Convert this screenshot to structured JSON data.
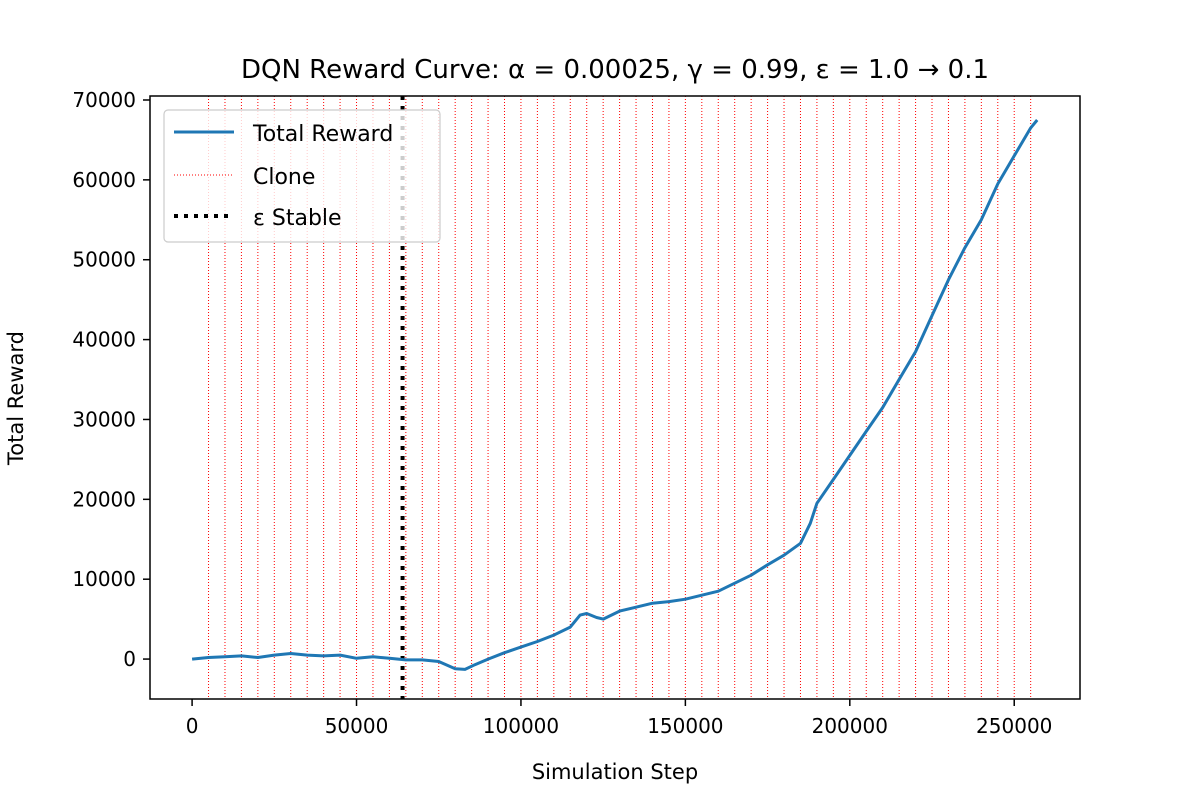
{
  "chart_data": {
    "type": "line",
    "title": "DQN Reward Curve: α = 0.00025, γ = 0.99, ε = 1.0 → 0.1",
    "xlabel": "Simulation Step",
    "ylabel": "Total Reward",
    "xlim": [
      -12800,
      270000
    ],
    "ylim": [
      -5000,
      70500
    ],
    "xticks": [
      0,
      50000,
      100000,
      150000,
      200000,
      250000
    ],
    "xtick_labels": [
      "0",
      "50000",
      "100000",
      "150000",
      "200000",
      "250000"
    ],
    "yticks": [
      0,
      10000,
      20000,
      30000,
      40000,
      50000,
      60000,
      70000
    ],
    "ytick_labels": [
      "0",
      "10000",
      "20000",
      "30000",
      "40000",
      "50000",
      "60000",
      "70000"
    ],
    "grid": false,
    "legend_position": "upper-left",
    "series": [
      {
        "name": "Total Reward",
        "color": "#1f77b4",
        "style": "solid",
        "x": [
          0,
          5000,
          10000,
          15000,
          20000,
          25000,
          30000,
          35000,
          40000,
          45000,
          50000,
          55000,
          60000,
          65000,
          70000,
          75000,
          80000,
          83000,
          86000,
          90000,
          95000,
          100000,
          105000,
          110000,
          115000,
          118000,
          120000,
          123000,
          125000,
          130000,
          135000,
          140000,
          145000,
          150000,
          155000,
          160000,
          165000,
          170000,
          175000,
          180000,
          185000,
          188000,
          190000,
          195000,
          200000,
          205000,
          210000,
          215000,
          220000,
          225000,
          230000,
          235000,
          240000,
          245000,
          250000,
          255000,
          257000
        ],
        "y": [
          0,
          200,
          300,
          400,
          200,
          500,
          700,
          500,
          400,
          500,
          100,
          300,
          100,
          -100,
          -100,
          -300,
          -1200,
          -1300,
          -700,
          0,
          800,
          1500,
          2200,
          3000,
          4000,
          5500,
          5700,
          5200,
          5000,
          6000,
          6500,
          7000,
          7200,
          7500,
          8000,
          8500,
          9500,
          10500,
          11800,
          13000,
          14500,
          17000,
          19500,
          22500,
          25500,
          28500,
          31500,
          35000,
          38500,
          43000,
          47500,
          51500,
          55000,
          59500,
          63000,
          66500,
          67500
        ]
      },
      {
        "name": "Clone",
        "color": "#ff0000",
        "style": "dotted",
        "x": [
          5000,
          10000,
          15000,
          20000,
          25000,
          30000,
          35000,
          40000,
          45000,
          50000,
          55000,
          60000,
          65000,
          70000,
          75000,
          80000,
          85000,
          90000,
          95000,
          100000,
          105000,
          110000,
          115000,
          120000,
          125000,
          130000,
          135000,
          140000,
          145000,
          150000,
          155000,
          160000,
          165000,
          170000,
          175000,
          180000,
          185000,
          190000,
          195000,
          200000,
          205000,
          210000,
          215000,
          220000,
          225000,
          230000,
          235000,
          240000,
          245000,
          250000,
          255000
        ]
      },
      {
        "name": "ε Stable",
        "color": "#000000",
        "style": "dotted-thick",
        "x": [
          64000
        ]
      }
    ]
  }
}
